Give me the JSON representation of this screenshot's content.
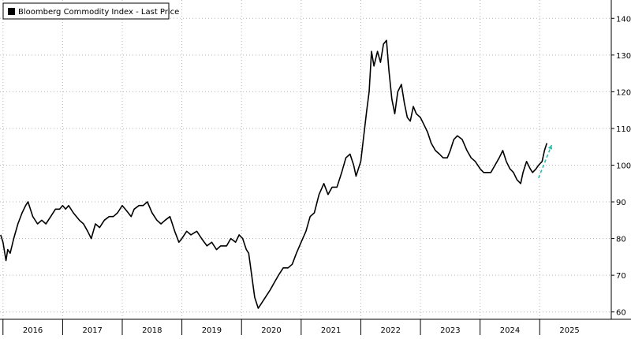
{
  "chart_data": {
    "type": "line",
    "legend": {
      "label": "Bloomberg Commodity Index - Last Price",
      "placement": "top-left",
      "swatch_color": "#000000"
    },
    "y_axis": {
      "side": "right",
      "ticks": [
        60,
        70,
        80,
        90,
        100,
        110,
        120,
        130,
        140
      ],
      "ylim": [
        58,
        145
      ]
    },
    "x_axis": {
      "labels": [
        "2016",
        "2017",
        "2018",
        "2019",
        "2020",
        "2021",
        "2022",
        "2023",
        "2024",
        "2025"
      ],
      "xlim": [
        2015.95,
        2026.2
      ]
    },
    "grid": true,
    "series": [
      {
        "name": "Bloomberg Commodity Index - Last Price",
        "color": "#000000",
        "points": [
          [
            2015.96,
            81
          ],
          [
            2016.0,
            79
          ],
          [
            2016.05,
            74
          ],
          [
            2016.08,
            77
          ],
          [
            2016.12,
            76
          ],
          [
            2016.18,
            80
          ],
          [
            2016.25,
            84
          ],
          [
            2016.32,
            87
          ],
          [
            2016.38,
            89
          ],
          [
            2016.42,
            90
          ],
          [
            2016.5,
            86
          ],
          [
            2016.58,
            84
          ],
          [
            2016.65,
            85
          ],
          [
            2016.72,
            84
          ],
          [
            2016.8,
            86
          ],
          [
            2016.88,
            88
          ],
          [
            2016.95,
            88
          ],
          [
            2017.0,
            89
          ],
          [
            2017.05,
            88
          ],
          [
            2017.1,
            89
          ],
          [
            2017.18,
            87
          ],
          [
            2017.28,
            85
          ],
          [
            2017.35,
            84
          ],
          [
            2017.42,
            82
          ],
          [
            2017.48,
            80
          ],
          [
            2017.55,
            84
          ],
          [
            2017.62,
            83
          ],
          [
            2017.7,
            85
          ],
          [
            2017.78,
            86
          ],
          [
            2017.85,
            86
          ],
          [
            2017.92,
            87
          ],
          [
            2018.0,
            89
          ],
          [
            2018.05,
            88
          ],
          [
            2018.1,
            87
          ],
          [
            2018.15,
            86
          ],
          [
            2018.2,
            88
          ],
          [
            2018.28,
            89
          ],
          [
            2018.35,
            89
          ],
          [
            2018.42,
            90
          ],
          [
            2018.5,
            87
          ],
          [
            2018.58,
            85
          ],
          [
            2018.65,
            84
          ],
          [
            2018.72,
            85
          ],
          [
            2018.8,
            86
          ],
          [
            2018.88,
            82
          ],
          [
            2018.95,
            79
          ],
          [
            2019.0,
            80
          ],
          [
            2019.08,
            82
          ],
          [
            2019.15,
            81
          ],
          [
            2019.25,
            82
          ],
          [
            2019.33,
            80
          ],
          [
            2019.42,
            78
          ],
          [
            2019.5,
            79
          ],
          [
            2019.58,
            77
          ],
          [
            2019.65,
            78
          ],
          [
            2019.75,
            78
          ],
          [
            2019.82,
            80
          ],
          [
            2019.9,
            79
          ],
          [
            2019.96,
            81
          ],
          [
            2020.02,
            80
          ],
          [
            2020.08,
            77
          ],
          [
            2020.12,
            76
          ],
          [
            2020.17,
            70
          ],
          [
            2020.22,
            64
          ],
          [
            2020.28,
            61
          ],
          [
            2020.32,
            62
          ],
          [
            2020.4,
            64
          ],
          [
            2020.48,
            66
          ],
          [
            2020.55,
            68
          ],
          [
            2020.62,
            70
          ],
          [
            2020.7,
            72
          ],
          [
            2020.78,
            72
          ],
          [
            2020.85,
            73
          ],
          [
            2020.92,
            76
          ],
          [
            2021.0,
            79
          ],
          [
            2021.08,
            82
          ],
          [
            2021.15,
            86
          ],
          [
            2021.22,
            87
          ],
          [
            2021.3,
            92
          ],
          [
            2021.38,
            95
          ],
          [
            2021.45,
            92
          ],
          [
            2021.52,
            94
          ],
          [
            2021.6,
            94
          ],
          [
            2021.68,
            98
          ],
          [
            2021.75,
            102
          ],
          [
            2021.82,
            103
          ],
          [
            2021.88,
            100
          ],
          [
            2021.92,
            97
          ],
          [
            2022.0,
            101
          ],
          [
            2022.05,
            108
          ],
          [
            2022.1,
            115
          ],
          [
            2022.14,
            120
          ],
          [
            2022.18,
            131
          ],
          [
            2022.22,
            127
          ],
          [
            2022.28,
            131
          ],
          [
            2022.33,
            128
          ],
          [
            2022.38,
            133
          ],
          [
            2022.43,
            134
          ],
          [
            2022.47,
            126
          ],
          [
            2022.52,
            118
          ],
          [
            2022.57,
            114
          ],
          [
            2022.62,
            120
          ],
          [
            2022.68,
            122
          ],
          [
            2022.73,
            117
          ],
          [
            2022.78,
            113
          ],
          [
            2022.83,
            112
          ],
          [
            2022.88,
            116
          ],
          [
            2022.93,
            114
          ],
          [
            2023.0,
            113
          ],
          [
            2023.06,
            111
          ],
          [
            2023.12,
            109
          ],
          [
            2023.18,
            106
          ],
          [
            2023.25,
            104
          ],
          [
            2023.32,
            103
          ],
          [
            2023.38,
            102
          ],
          [
            2023.45,
            102
          ],
          [
            2023.5,
            104
          ],
          [
            2023.56,
            107
          ],
          [
            2023.62,
            108
          ],
          [
            2023.7,
            107
          ],
          [
            2023.78,
            104
          ],
          [
            2023.85,
            102
          ],
          [
            2023.92,
            101
          ],
          [
            2024.0,
            99
          ],
          [
            2024.06,
            98
          ],
          [
            2024.12,
            98
          ],
          [
            2024.18,
            98
          ],
          [
            2024.25,
            100
          ],
          [
            2024.32,
            102
          ],
          [
            2024.38,
            104
          ],
          [
            2024.44,
            101
          ],
          [
            2024.5,
            99
          ],
          [
            2024.56,
            98
          ],
          [
            2024.62,
            96
          ],
          [
            2024.68,
            95
          ],
          [
            2024.72,
            98
          ],
          [
            2024.78,
            101
          ],
          [
            2024.84,
            99
          ],
          [
            2024.88,
            98
          ],
          [
            2024.94,
            99
          ],
          [
            2024.98,
            100
          ],
          [
            2025.04,
            101
          ],
          [
            2025.08,
            104
          ],
          [
            2025.12,
            106
          ]
        ]
      }
    ],
    "projection": {
      "style": "dashed",
      "color": "#2bbfb0",
      "points": [
        [
          2024.98,
          96.5
        ],
        [
          2025.2,
          105.5
        ]
      ]
    }
  }
}
